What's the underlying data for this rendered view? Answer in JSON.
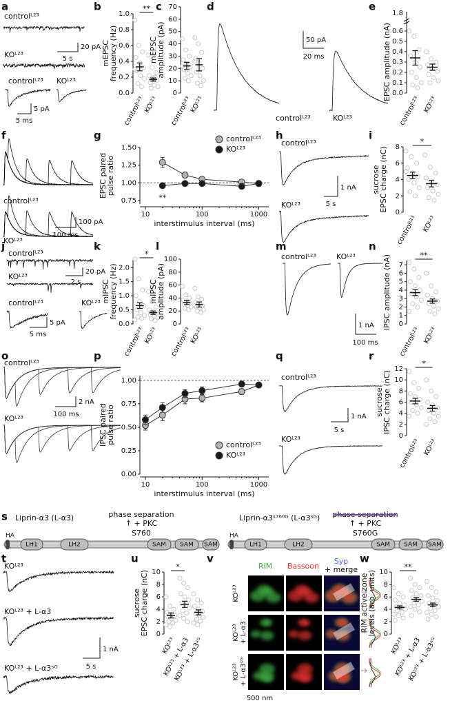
{
  "panel_letters": [
    "a",
    "b",
    "c",
    "d",
    "e",
    "f",
    "g",
    "h",
    "i",
    "j",
    "k",
    "l",
    "m",
    "n",
    "o",
    "p",
    "q",
    "r",
    "s",
    "t",
    "u",
    "v",
    "w"
  ],
  "chart_data": [
    {
      "type": "strip",
      "ylabel": [
        "mEPSC",
        "frequency (Hz)"
      ],
      "categories": [
        "controlᴸ²³",
        "KOᴸ²³"
      ],
      "values": [
        0.33,
        0.17
      ],
      "errors": [
        0.05,
        0.02
      ],
      "points": [
        [
          0.92,
          0.6,
          0.52,
          0.45,
          0.38,
          0.32,
          0.28,
          0.22,
          0.18,
          0.12,
          0.08,
          0.3
        ],
        [
          0.48,
          0.32,
          0.26,
          0.22,
          0.19,
          0.16,
          0.13,
          0.1,
          0.08,
          0.06,
          0.2
        ]
      ],
      "point_color": "#c8c8c8",
      "ylim": [
        0,
        1
      ],
      "yticks": [
        {
          "value": 0,
          "label": "0.0"
        },
        0.2,
        0.4,
        0.6,
        0.8,
        {
          "value": 1,
          "label": "1.0"
        }
      ],
      "significance": "**"
    },
    {
      "type": "strip",
      "ylabel": [
        "mEPSC",
        "amplitude (pA)"
      ],
      "categories": [
        "controlᴸ²³",
        "KOᴸ²³"
      ],
      "values": [
        22,
        23
      ],
      "errors": [
        3,
        5
      ],
      "points": [
        [
          44,
          35,
          30,
          27,
          24,
          21,
          19,
          16,
          14,
          12,
          10,
          22
        ],
        [
          45,
          40,
          33,
          28,
          24,
          20,
          17,
          14,
          10,
          8,
          6,
          26
        ]
      ],
      "point_color": "#c8c8c8",
      "ylim": [
        0,
        70
      ],
      "yticks": [
        0,
        10,
        20,
        30,
        40,
        50,
        60,
        70
      ]
    },
    {
      "type": "strip",
      "ylabel": [
        "EPSC amplitude (nA)"
      ],
      "categories": [
        "controlᴸ²³",
        "KOᴸ²³"
      ],
      "values": [
        0.34,
        0.25
      ],
      "errors": [
        0.07,
        0.03
      ],
      "points": [
        [
          0.6,
          0.55,
          0.42,
          0.36,
          0.3,
          0.25,
          0.2,
          0.15,
          0.1,
          0.08,
          0.05
        ],
        [
          0.4,
          0.33,
          0.3,
          0.27,
          0.24,
          0.21,
          0.18,
          0.15,
          0.12,
          0.1
        ]
      ],
      "point_color": "#c8c8c8",
      "ylim": [
        0,
        0.6
      ],
      "yticks": [
        {
          "value": 0,
          "label": "0.0"
        },
        0.1,
        0.2,
        0.3,
        0.4,
        0.5,
        0.6
      ],
      "break_label": "1.8"
    },
    {
      "type": "line",
      "ylabel": [
        "EPSC paired",
        "pulse ratio"
      ],
      "xlabel": "interstimulus interval (ms)",
      "log_x": true,
      "x": [
        20,
        50,
        100,
        500,
        1000
      ],
      "xlim": [
        8,
        1500
      ],
      "xticks": [
        10,
        100,
        1000
      ],
      "ylim": [
        0.7,
        1.5
      ],
      "yticks": [
        {
          "value": 0.75,
          "label": "0.75"
        },
        {
          "value": 1,
          "label": "1.00"
        },
        {
          "value": 1.25,
          "label": "1.25"
        },
        {
          "value": 1.5,
          "label": "1.50"
        }
      ],
      "reference_line": 1,
      "legend": "upper right",
      "annotation": "**",
      "series": [
        {
          "name": "controlᴸ²³",
          "color": "#b3b3b3",
          "values": [
            1.29,
            1.11,
            1.05,
            1.01,
            0.99
          ],
          "errors": [
            0.07,
            0.04,
            0.03,
            0.02,
            0.03
          ]
        },
        {
          "name": "KOᴸ²³",
          "color": "#1a1a1a",
          "values": [
            0.96,
            0.99,
            0.99,
            0.95,
            0.99
          ],
          "errors": [
            0.03,
            0.03,
            0.02,
            0.02,
            0.04
          ]
        }
      ]
    },
    {
      "type": "strip",
      "ylabel": [
        "sucrose",
        "EPSC charge (nC)"
      ],
      "categories": [
        "controlᴸ²³",
        "KOᴸ²³"
      ],
      "values": [
        4.5,
        3.5
      ],
      "errors": [
        0.4,
        0.4
      ],
      "points": [
        [
          7.5,
          6.8,
          6,
          5.4,
          4.8,
          4.4,
          4,
          3.6,
          3,
          2.5,
          2,
          5
        ],
        [
          7,
          5.5,
          4.8,
          4.2,
          3.8,
          3.4,
          3,
          2.6,
          2.2,
          1.8,
          1.5
        ]
      ],
      "point_color": "#c8c8c8",
      "ylim": [
        0,
        8
      ],
      "yticks": [
        0,
        2,
        4,
        6,
        8
      ],
      "significance": "*"
    },
    {
      "type": "strip",
      "ylabel": [
        "mIPSC",
        "frequency (Hz)"
      ],
      "categories": [
        "controlᴸ²³",
        "KOᴸ²³"
      ],
      "values": [
        0.65,
        0.4
      ],
      "errors": [
        0.1,
        0.06
      ],
      "points": [
        [
          2.3,
          1.6,
          1.2,
          1,
          0.8,
          0.65,
          0.5,
          0.4,
          0.3,
          0.25,
          0.2,
          0.15
        ],
        [
          1.15,
          0.8,
          0.6,
          0.5,
          0.42,
          0.38,
          0.32,
          0.28,
          0.22,
          0.18,
          0.12
        ]
      ],
      "point_color": "#c8c8c8",
      "ylim": [
        0,
        2.3
      ],
      "yticks": [
        {
          "value": 0,
          "label": "0.0"
        },
        0.5,
        {
          "value": 1,
          "label": "1.0"
        },
        1.5,
        {
          "value": 2,
          "label": "2.0"
        }
      ],
      "significance": "*"
    },
    {
      "type": "strip",
      "ylabel": [
        "mIPSC",
        "amplitude (pA)"
      ],
      "categories": [
        "controlᴸ²³",
        "KOᴸ²³"
      ],
      "values": [
        33,
        30
      ],
      "errors": [
        3,
        4
      ],
      "points": [
        [
          58,
          45,
          40,
          37,
          34,
          32,
          30,
          28,
          26,
          24,
          22
        ],
        [
          55,
          42,
          38,
          34,
          31,
          28,
          26,
          24,
          22,
          20,
          18
        ]
      ],
      "point_color": "#c8c8c8",
      "ylim": [
        0,
        100
      ],
      "yticks": [
        0,
        20,
        40,
        60,
        80,
        100
      ]
    },
    {
      "type": "strip",
      "ylabel": [
        "IPSC amplitude (nA)"
      ],
      "categories": [
        "controlᴸ²³",
        "KOᴸ²³"
      ],
      "values": [
        3.7,
        2.7
      ],
      "errors": [
        0.35,
        0.25
      ],
      "points": [
        [
          7.3,
          6.5,
          5.5,
          5,
          4.5,
          4,
          3.6,
          3.2,
          2.8,
          2.4,
          2,
          1.5
        ],
        [
          6,
          4.5,
          3.8,
          3.4,
          3,
          2.7,
          2.4,
          2.1,
          1.8,
          1.5,
          1.2
        ]
      ],
      "point_color": "#c8c8c8",
      "ylim": [
        0,
        7.5
      ],
      "yticks": [
        0,
        1,
        2,
        3,
        4,
        5,
        6,
        7
      ],
      "significance": "**"
    },
    {
      "type": "line",
      "ylabel": [
        "IPSC paired",
        "pulse ratio"
      ],
      "xlabel": "interstimulus interval (ms)",
      "log_x": true,
      "x": [
        10,
        20,
        50,
        100,
        500,
        1000
      ],
      "xlim": [
        8,
        1500
      ],
      "xticks": [
        10,
        100,
        1000
      ],
      "ylim": [
        0,
        1.05
      ],
      "yticks": [
        {
          "value": 0,
          "label": "0.00"
        },
        {
          "value": 0.25,
          "label": "0.25"
        },
        {
          "value": 0.5,
          "label": "0.50"
        },
        {
          "value": 0.75,
          "label": "0.75"
        },
        {
          "value": 1,
          "label": "1.00"
        }
      ],
      "reference_line": 1,
      "legend": "lower right",
      "series": [
        {
          "name": "controlᴸ²³",
          "color": "#b3b3b3",
          "values": [
            0.52,
            0.63,
            0.8,
            0.81,
            0.88,
            0.95
          ],
          "errors": [
            0.05,
            0.06,
            0.05,
            0.04,
            0.03,
            0.02
          ]
        },
        {
          "name": "KOᴸ²³",
          "color": "#1a1a1a",
          "values": [
            0.58,
            0.71,
            0.86,
            0.89,
            0.96,
            0.95
          ],
          "errors": [
            0.05,
            0.05,
            0.04,
            0.04,
            0.03,
            0.02
          ]
        }
      ]
    },
    {
      "type": "strip",
      "ylabel": [
        "sucrose",
        "IPSC charge (nC)"
      ],
      "categories": [
        "controlᴸ²³",
        "KOᴸ²³"
      ],
      "values": [
        6.2,
        4.9
      ],
      "errors": [
        0.5,
        0.5
      ],
      "points": [
        [
          11.5,
          9.5,
          8.5,
          7.5,
          7,
          6.5,
          6,
          5.5,
          5,
          4.5,
          4,
          3.5
        ],
        [
          10,
          8,
          7,
          6,
          5.5,
          5,
          4.5,
          4,
          3.5,
          3,
          2.5,
          2
        ]
      ],
      "point_color": "#c8c8c8",
      "ylim": [
        0,
        12
      ],
      "yticks": [
        0,
        2,
        4,
        6,
        8,
        10,
        12
      ],
      "significance": "*"
    },
    {
      "type": "strip",
      "ylabel": [
        "sucrose",
        "EPSC charge (nC)"
      ],
      "categories": [
        "KOᴸ²³",
        "KOᴸ²³ + L-α3",
        "KOᴸ²³ + L-α3ˢᴳ"
      ],
      "values": [
        3,
        4.8,
        3.5
      ],
      "errors": [
        0.4,
        0.5,
        0.4
      ],
      "points": [
        [
          6,
          4.5,
          4,
          3.5,
          3.2,
          3,
          2.8,
          2.5,
          2.2,
          2,
          1.8,
          1.5,
          1.2
        ],
        [
          9,
          8.2,
          7.5,
          6.5,
          6,
          5.5,
          5,
          4.6,
          4.2,
          3.8,
          3.4,
          3,
          2.5,
          2
        ],
        [
          6.5,
          5.5,
          5,
          4.5,
          4,
          3.6,
          3.3,
          3,
          2.7,
          2.4,
          2.1,
          1.8,
          1.5
        ]
      ],
      "point_color": "#c8c8c8",
      "ylim": [
        0,
        10
      ],
      "yticks": [
        0,
        2,
        4,
        6,
        8,
        10
      ],
      "significance": "*"
    },
    {
      "type": "strip",
      "ylabel": [
        "RIM active zone",
        "levels (arb. units)"
      ],
      "categories": [
        "KOᴸ²³",
        "KOᴸ²³ + L-α3",
        "KOᴸ²³ + L-α3ˢᴳ"
      ],
      "values": [
        4.3,
        5.6,
        4.7
      ],
      "errors": [
        0.25,
        0.3,
        0.3
      ],
      "points": [
        [
          7.5,
          6.5,
          6,
          5.5,
          5,
          4.7,
          4.4,
          4.2,
          4,
          3.8,
          3.5,
          3.2,
          3,
          2.6,
          2.2
        ],
        [
          9,
          8,
          7.5,
          7,
          6.5,
          6.2,
          5.9,
          5.6,
          5.3,
          5,
          4.7,
          4.4,
          4,
          3.6,
          3
        ],
        [
          8.5,
          7.5,
          6.8,
          6.2,
          5.8,
          5.4,
          5,
          4.7,
          4.4,
          4.1,
          3.8,
          3.5,
          3.2,
          2.8,
          2.4
        ]
      ],
      "point_color": "#c8c8c8",
      "ylim": [
        0,
        10
      ],
      "yticks": [
        0,
        2,
        4,
        6,
        8,
        10
      ],
      "significance": "**"
    }
  ],
  "traces": {
    "a": {
      "labels": [
        "controlᴸ²³",
        "KOᴸ²³",
        "controlᴸ²³",
        "KOᴸ²³"
      ],
      "scale_bars": [
        "20 pA",
        "5 s",
        "5 pA",
        "5 ms"
      ]
    },
    "d": {
      "labels": [
        "controlᴸ²³",
        "KOᴸ²³"
      ],
      "scale_bars": [
        "50 pA",
        "20 ms"
      ]
    },
    "f": {
      "labels": [
        "controlᴸ²³",
        "KOᴸ²³"
      ],
      "scale_bars": [
        "100 pA",
        "100 ms"
      ]
    },
    "h": {
      "labels": [
        "controlᴸ²³",
        "KOᴸ²³"
      ],
      "scale_bars": [
        "1 nA",
        "5 s"
      ]
    },
    "j": {
      "labels": [
        "controlᴸ²³",
        "KOᴸ²³",
        "controlᴸ²³",
        "KOᴸ²³"
      ],
      "scale_bars": [
        "20 pA",
        "2 s",
        "5 pA",
        "5 ms"
      ]
    },
    "m": {
      "labels": [
        "controlᴸ²³",
        "KOᴸ²³"
      ],
      "scale_bars": [
        "1 nA",
        "100 ms"
      ]
    },
    "o": {
      "labels": [
        "controlᴸ²³",
        "KOᴸ²³"
      ],
      "scale_bars": [
        "2 nA",
        "100 ms"
      ]
    },
    "q": {
      "labels": [
        "controlᴸ²³",
        "KOᴸ²³"
      ],
      "scale_bars": [
        "1 nA",
        "5 s"
      ]
    },
    "t": {
      "labels": [
        "KOᴸ²³",
        "KOᴸ²³ + L-α3",
        "KOᴸ²³ + L-α3ˢᴳ"
      ],
      "scale_bars": [
        "1 nA",
        "5 s"
      ]
    }
  },
  "domain_diagram": {
    "constructs": [
      {
        "name": "Liprin-α3 (L-α3)",
        "annotation": "phase separation",
        "pkc": "↑ + PKC",
        "site": "S760",
        "domains": [
          "HA",
          "LH1",
          "LH2",
          "SAM",
          "SAM",
          "SAM"
        ]
      },
      {
        "name": "Liprin-α3ˢ⁷⁶⁰ᴳ (L-α3ˢᴳ)",
        "annotation": "phase separation",
        "pkc": "↑ + PKC",
        "site": "S760G",
        "domains": [
          "HA",
          "LH1",
          "LH2",
          "SAM",
          "SAM",
          "SAM"
        ]
      }
    ]
  },
  "images": {
    "columns": [
      "RIM",
      "Bassoon",
      "Syp",
      "+ merge"
    ],
    "rows": [
      [
        "KOᴸ²³"
      ],
      [
        "KOᴸ²³",
        "+ L-α3"
      ],
      [
        "KOᴸ²³",
        "+ L-α3ˢᴳ"
      ]
    ],
    "scale_bar": "500 nm"
  }
}
